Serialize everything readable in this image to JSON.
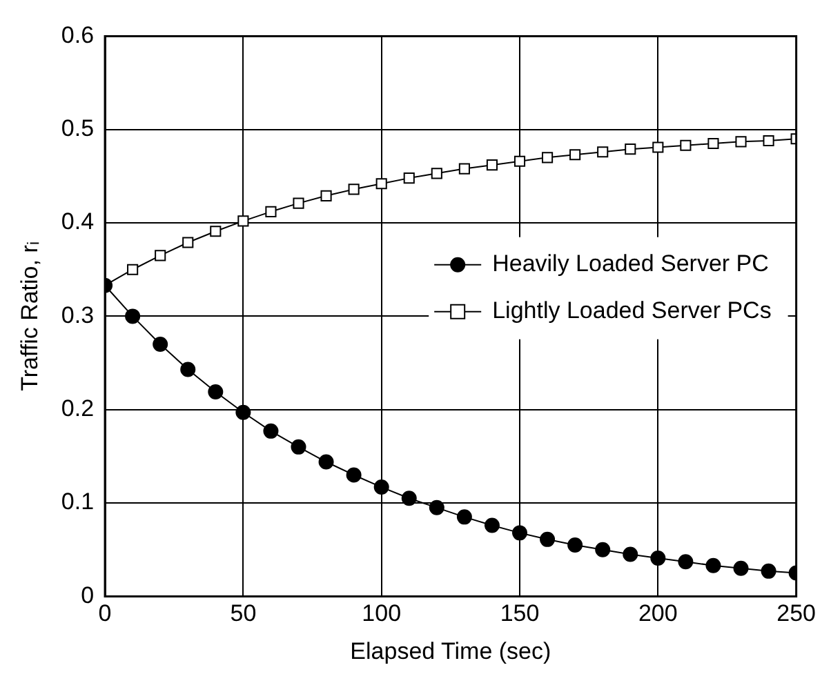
{
  "chart_data": {
    "type": "line",
    "xlabel": "Elapsed Time (sec)",
    "ylabel": "Traffic Ratio, rᵢ",
    "x": [
      0,
      10,
      20,
      30,
      40,
      50,
      60,
      70,
      80,
      90,
      100,
      110,
      120,
      130,
      140,
      150,
      160,
      170,
      180,
      190,
      200,
      210,
      220,
      230,
      240,
      250
    ],
    "series": [
      {
        "name": "Heavily Loaded Server PC",
        "color": "#000000",
        "marker": "circle",
        "values": [
          0.333,
          0.3,
          0.27,
          0.243,
          0.219,
          0.197,
          0.177,
          0.16,
          0.144,
          0.13,
          0.117,
          0.105,
          0.095,
          0.085,
          0.076,
          0.068,
          0.061,
          0.055,
          0.05,
          0.045,
          0.041,
          0.037,
          0.033,
          0.03,
          0.027,
          0.025
        ]
      },
      {
        "name": "Lightly Loaded Server PCs",
        "color": "#000000",
        "marker": "square",
        "values": [
          0.333,
          0.35,
          0.365,
          0.379,
          0.391,
          0.402,
          0.412,
          0.421,
          0.429,
          0.436,
          0.442,
          0.448,
          0.453,
          0.458,
          0.462,
          0.466,
          0.47,
          0.473,
          0.476,
          0.479,
          0.481,
          0.483,
          0.485,
          0.487,
          0.488,
          0.49
        ]
      }
    ],
    "xlim": [
      0,
      250
    ],
    "xticks": [
      0,
      50,
      100,
      150,
      200,
      250
    ],
    "ylim": [
      0,
      0.6
    ],
    "yticks": [
      0,
      0.1,
      0.2,
      0.3,
      0.4,
      0.5,
      0.6
    ],
    "grid": true,
    "legend": "right",
    "line_style": "solid"
  }
}
